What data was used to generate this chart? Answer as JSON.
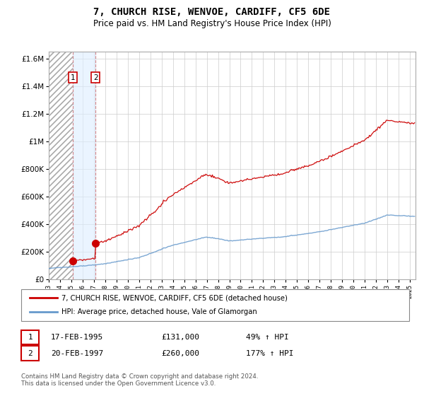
{
  "title": "7, CHURCH RISE, WENVOE, CARDIFF, CF5 6DE",
  "subtitle": "Price paid vs. HM Land Registry's House Price Index (HPI)",
  "title_fontsize": 10,
  "subtitle_fontsize": 8.5,
  "legend_line1": "7, CHURCH RISE, WENVOE, CARDIFF, CF5 6DE (detached house)",
  "legend_line2": "HPI: Average price, detached house, Vale of Glamorgan",
  "table_row1": [
    "1",
    "17-FEB-1995",
    "£131,000",
    "49% ↑ HPI"
  ],
  "table_row2": [
    "2",
    "20-FEB-1997",
    "£260,000",
    "177% ↑ HPI"
  ],
  "footnote": "Contains HM Land Registry data © Crown copyright and database right 2024.\nThis data is licensed under the Open Government Licence v3.0.",
  "purchase1_year": 1995.13,
  "purchase1_price": 131000,
  "purchase2_year": 1997.14,
  "purchase2_price": 260000,
  "xmin": 1993,
  "xmax": 2025.5,
  "ymin": 0,
  "ymax": 1650000,
  "yticks": [
    0,
    200000,
    400000,
    600000,
    800000,
    1000000,
    1200000,
    1400000,
    1600000
  ],
  "ytick_labels": [
    "£0",
    "£200K",
    "£400K",
    "£600K",
    "£800K",
    "£1M",
    "£1.2M",
    "£1.4M",
    "£1.6M"
  ],
  "red_color": "#cc0000",
  "blue_color": "#6699cc",
  "shade_color": "#ddeeff",
  "grid_color": "#cccccc",
  "background_color": "#ffffff"
}
